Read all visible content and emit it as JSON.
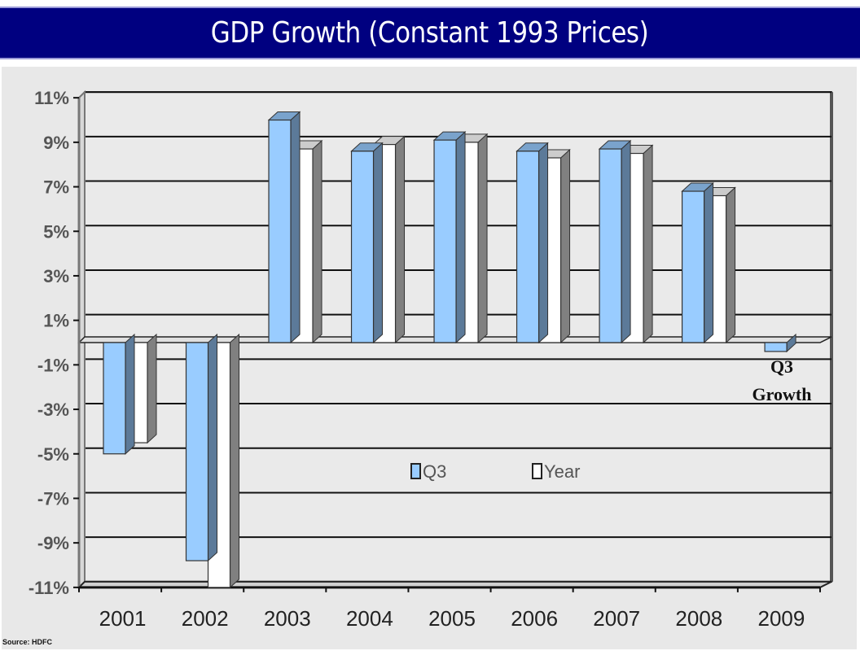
{
  "title": "GDP Growth (Constant 1993 Prices)",
  "colors": {
    "title_bg": "#000080",
    "title_text": "#ffffff",
    "panel_bg": "#e8e8e8",
    "q3_front": "#99ccff",
    "q3_top": "#7aa3cc",
    "q3_side": "#5c7a99",
    "year_front": "#ffffff",
    "year_top": "#cccccc",
    "year_side": "#808080"
  },
  "source": "Source: HDFC",
  "chart_data": {
    "type": "bar",
    "title": "GDP Growth (Constant 1993 Prices)",
    "xlabel": "",
    "ylabel": "",
    "categories": [
      "2001",
      "2002",
      "2003",
      "2004",
      "2005",
      "2006",
      "2007",
      "2008",
      "2009"
    ],
    "series": [
      {
        "name": "Q3",
        "values": [
          -5.0,
          -9.8,
          10.0,
          8.6,
          9.1,
          8.6,
          8.7,
          6.8,
          -0.4
        ]
      },
      {
        "name": "Year",
        "values": [
          -4.5,
          -11.0,
          8.7,
          8.9,
          9.0,
          8.3,
          8.5,
          6.6,
          null
        ]
      }
    ],
    "ylim": [
      -11,
      11
    ],
    "yticks": [
      11,
      9,
      7,
      5,
      3,
      1,
      -1,
      -3,
      -5,
      -7,
      -9,
      -11
    ],
    "ytick_labels": [
      "11%",
      "9%",
      "7%",
      "5%",
      "3%",
      "1%",
      "-1%",
      "-3%",
      "-5%",
      "-7%",
      "-9%",
      "-11%"
    ],
    "grid": true,
    "legend": {
      "position": "center",
      "entries": [
        "Q3",
        "Year"
      ]
    },
    "annotations": [
      {
        "category": "2009",
        "lines": [
          "Q3",
          "Growth"
        ]
      }
    ],
    "style": "3d-clustered-column"
  }
}
